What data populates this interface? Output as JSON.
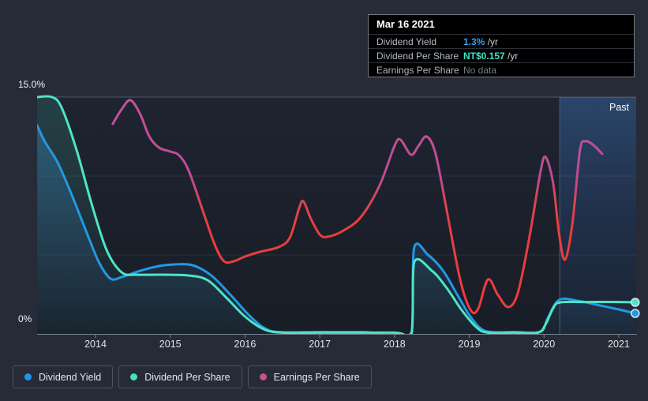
{
  "tooltip": {
    "date": "Mar 16 2021",
    "rows": [
      {
        "label": "Dividend Yield",
        "value": "1.3%",
        "suffix": " /yr",
        "value_color": "#35a3ea",
        "emphasis": true
      },
      {
        "label": "Dividend Per Share",
        "value": "NT$0.157",
        "suffix": " /yr",
        "value_color": "#3ce6c6",
        "emphasis": true
      },
      {
        "label": "Earnings Per Share",
        "value": "No data",
        "suffix": "",
        "value_color": "#777d85",
        "emphasis": false
      }
    ]
  },
  "chart": {
    "past_label": "Past",
    "y_axis_top_label": "15.0%",
    "y_axis_bottom_label": "0%"
  },
  "legend": {
    "items": [
      {
        "label": "Dividend Yield",
        "color": "#1e96e8"
      },
      {
        "label": "Dividend Per Share",
        "color": "#45e0c0"
      },
      {
        "label": "Earnings Per Share",
        "color": "#c9518f"
      }
    ]
  },
  "chart_data": {
    "type": "line",
    "title": "Dividend history (yield, dividend per share, earnings per share)",
    "x_axis": {
      "tick_years": [
        2014,
        2015,
        2016,
        2017,
        2018,
        2019,
        2020,
        2021
      ],
      "range": [
        2013.22,
        2021.25
      ]
    },
    "y_axis": {
      "range_pct": [
        0,
        15
      ],
      "gridlines_pct": [
        5,
        10,
        15
      ],
      "top_label": "15.0%",
      "bottom_label": "0%"
    },
    "past_region": {
      "label": "Past",
      "start_year": 2020.21,
      "end_year": 2021.25
    },
    "series": [
      {
        "name": "Dividend Yield",
        "color": "#2398e4",
        "fill": true,
        "end_dot": true,
        "gradient": false,
        "points": [
          [
            2013.22,
            13.2
          ],
          [
            2013.32,
            12.2
          ],
          [
            2013.5,
            10.8
          ],
          [
            2013.7,
            8.6
          ],
          [
            2013.9,
            6.2
          ],
          [
            2014.05,
            4.5
          ],
          [
            2014.2,
            3.5
          ],
          [
            2014.35,
            3.6
          ],
          [
            2014.6,
            4.0
          ],
          [
            2014.85,
            4.3
          ],
          [
            2015.05,
            4.4
          ],
          [
            2015.3,
            4.35
          ],
          [
            2015.55,
            3.7
          ],
          [
            2015.8,
            2.5
          ],
          [
            2016.05,
            1.2
          ],
          [
            2016.25,
            0.4
          ],
          [
            2016.45,
            0.12
          ],
          [
            2017.0,
            0.12
          ],
          [
            2017.6,
            0.12
          ],
          [
            2018.23,
            0.12
          ],
          [
            2018.26,
            5.4
          ],
          [
            2018.45,
            5.0
          ],
          [
            2018.65,
            4.0
          ],
          [
            2018.85,
            2.4
          ],
          [
            2019.0,
            1.2
          ],
          [
            2019.15,
            0.35
          ],
          [
            2019.3,
            0.12
          ],
          [
            2019.6,
            0.12
          ],
          [
            2019.95,
            0.15
          ],
          [
            2020.05,
            1.0
          ],
          [
            2020.2,
            2.15
          ],
          [
            2020.45,
            2.1
          ],
          [
            2020.7,
            1.85
          ],
          [
            2021.0,
            1.55
          ],
          [
            2021.22,
            1.3
          ]
        ]
      },
      {
        "name": "Dividend Per Share",
        "color": "#4ee4c5",
        "fill": true,
        "end_dot": true,
        "gradient": false,
        "points": [
          [
            2013.22,
            15.0
          ],
          [
            2013.42,
            15.0
          ],
          [
            2013.55,
            14.3
          ],
          [
            2013.75,
            11.6
          ],
          [
            2013.95,
            8.2
          ],
          [
            2014.15,
            5.3
          ],
          [
            2014.35,
            3.9
          ],
          [
            2014.55,
            3.75
          ],
          [
            2014.9,
            3.75
          ],
          [
            2015.25,
            3.7
          ],
          [
            2015.5,
            3.4
          ],
          [
            2015.75,
            2.3
          ],
          [
            2016.0,
            1.1
          ],
          [
            2016.25,
            0.3
          ],
          [
            2016.5,
            0.08
          ],
          [
            2017.0,
            0.08
          ],
          [
            2018.0,
            0.08
          ],
          [
            2018.23,
            0.08
          ],
          [
            2018.26,
            4.5
          ],
          [
            2018.5,
            4.0
          ],
          [
            2018.7,
            2.9
          ],
          [
            2018.9,
            1.5
          ],
          [
            2019.1,
            0.4
          ],
          [
            2019.25,
            0.08
          ],
          [
            2019.6,
            0.08
          ],
          [
            2019.92,
            0.08
          ],
          [
            2020.02,
            0.6
          ],
          [
            2020.12,
            1.6
          ],
          [
            2020.22,
            2.0
          ],
          [
            2020.6,
            2.02
          ],
          [
            2021.0,
            2.02
          ],
          [
            2021.22,
            2.0
          ]
        ]
      },
      {
        "name": "Earnings Per Share",
        "color": "#c0488f",
        "color_low": "#ee3c3c",
        "fill": false,
        "end_dot": false,
        "gradient": true,
        "points": [
          [
            2014.23,
            13.3
          ],
          [
            2014.36,
            14.3
          ],
          [
            2014.47,
            14.8
          ],
          [
            2014.6,
            13.9
          ],
          [
            2014.72,
            12.5
          ],
          [
            2014.85,
            11.8
          ],
          [
            2015.0,
            11.55
          ],
          [
            2015.12,
            11.3
          ],
          [
            2015.25,
            10.3
          ],
          [
            2015.45,
            7.6
          ],
          [
            2015.6,
            5.6
          ],
          [
            2015.72,
            4.6
          ],
          [
            2015.85,
            4.6
          ],
          [
            2016.0,
            4.9
          ],
          [
            2016.2,
            5.2
          ],
          [
            2016.45,
            5.5
          ],
          [
            2016.6,
            6.1
          ],
          [
            2016.72,
            7.9
          ],
          [
            2016.78,
            8.4
          ],
          [
            2016.88,
            7.3
          ],
          [
            2017.0,
            6.3
          ],
          [
            2017.1,
            6.15
          ],
          [
            2017.3,
            6.5
          ],
          [
            2017.55,
            7.4
          ],
          [
            2017.8,
            9.4
          ],
          [
            2018.0,
            11.9
          ],
          [
            2018.08,
            12.3
          ],
          [
            2018.22,
            11.35
          ],
          [
            2018.32,
            11.9
          ],
          [
            2018.43,
            12.5
          ],
          [
            2018.55,
            11.4
          ],
          [
            2018.7,
            7.8
          ],
          [
            2018.88,
            3.4
          ],
          [
            2019.02,
            1.5
          ],
          [
            2019.12,
            1.6
          ],
          [
            2019.25,
            3.45
          ],
          [
            2019.38,
            2.5
          ],
          [
            2019.52,
            1.7
          ],
          [
            2019.65,
            2.6
          ],
          [
            2019.8,
            6.0
          ],
          [
            2019.95,
            10.2
          ],
          [
            2020.02,
            11.2
          ],
          [
            2020.12,
            9.6
          ],
          [
            2020.2,
            6.4
          ],
          [
            2020.28,
            4.7
          ],
          [
            2020.38,
            7.0
          ],
          [
            2020.48,
            11.6
          ],
          [
            2020.55,
            12.2
          ],
          [
            2020.65,
            12.0
          ],
          [
            2020.78,
            11.4
          ]
        ]
      }
    ]
  }
}
